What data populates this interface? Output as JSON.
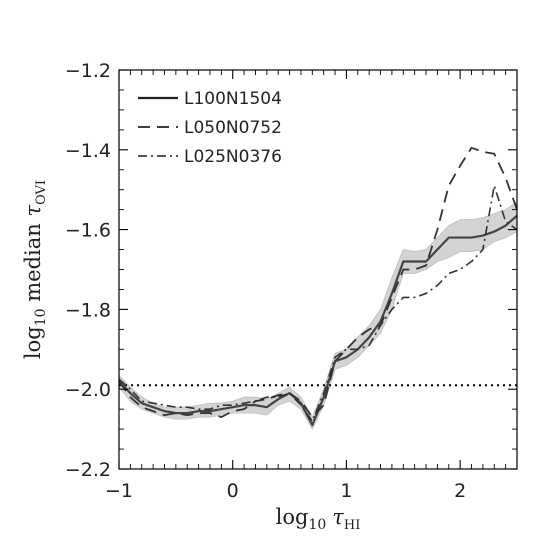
{
  "chart_data": {
    "type": "line",
    "xlabel": {
      "prefix": "log",
      "sub": "10",
      "var": "τ",
      "varsub": "HI"
    },
    "ylabel": {
      "prefix": "log",
      "sub": "10",
      "mid": " median ",
      "var": "τ",
      "varsub": "OVI"
    },
    "xlim": [
      -1,
      2.5
    ],
    "ylim": [
      -2.2,
      -1.2
    ],
    "xticks": [
      -1,
      0,
      1,
      2
    ],
    "xtick_labels": [
      "−1",
      "0",
      "1",
      "2"
    ],
    "yticks": [
      -2.2,
      -2.0,
      -1.8,
      -1.6,
      -1.4,
      -1.2
    ],
    "ytick_labels": [
      "−2.2",
      "−2.0",
      "−1.8",
      "−1.6",
      "−1.4",
      "−1.2"
    ],
    "legend_position": "top-left",
    "reference_line": {
      "y": -1.99,
      "style": "dotted"
    },
    "band": {
      "x": [
        -1.0,
        -0.9,
        -0.8,
        -0.7,
        -0.6,
        -0.5,
        -0.4,
        -0.3,
        -0.2,
        -0.1,
        0.0,
        0.1,
        0.2,
        0.3,
        0.4,
        0.5,
        0.6,
        0.7,
        0.8,
        0.9,
        1.0,
        1.1,
        1.2,
        1.3,
        1.4,
        1.5,
        1.6,
        1.7,
        1.8,
        1.9,
        2.0,
        2.1,
        2.2,
        2.3,
        2.4,
        2.5
      ],
      "lower": [
        -1.995,
        -2.03,
        -2.05,
        -2.06,
        -2.07,
        -2.075,
        -2.075,
        -2.07,
        -2.07,
        -2.065,
        -2.06,
        -2.06,
        -2.06,
        -2.065,
        -2.04,
        -2.03,
        -2.05,
        -2.1,
        -2.04,
        -1.95,
        -1.94,
        -1.92,
        -1.89,
        -1.86,
        -1.8,
        -1.71,
        -1.71,
        -1.7,
        -1.68,
        -1.67,
        -1.655,
        -1.655,
        -1.65,
        -1.63,
        -1.62,
        -1.605
      ],
      "upper": [
        -1.965,
        -1.995,
        -2.02,
        -2.035,
        -2.045,
        -2.045,
        -2.045,
        -2.04,
        -2.035,
        -2.035,
        -2.03,
        -2.02,
        -2.02,
        -2.025,
        -2.01,
        -1.995,
        -2.02,
        -2.07,
        -2.0,
        -1.91,
        -1.9,
        -1.87,
        -1.84,
        -1.8,
        -1.72,
        -1.65,
        -1.655,
        -1.65,
        -1.62,
        -1.59,
        -1.575,
        -1.575,
        -1.57,
        -1.56,
        -1.55,
        -1.53
      ]
    },
    "series": [
      {
        "name": "L100N1504",
        "dash": "",
        "width": 2.2,
        "color": "#444444",
        "x": [
          -1.0,
          -0.9,
          -0.8,
          -0.7,
          -0.6,
          -0.5,
          -0.4,
          -0.3,
          -0.2,
          -0.1,
          0.0,
          0.1,
          0.2,
          0.3,
          0.4,
          0.5,
          0.6,
          0.7,
          0.8,
          0.9,
          1.0,
          1.1,
          1.2,
          1.3,
          1.4,
          1.5,
          1.6,
          1.7,
          1.8,
          1.9,
          2.0,
          2.1,
          2.2,
          2.3,
          2.4,
          2.5
        ],
        "y": [
          -1.98,
          -2.01,
          -2.035,
          -2.045,
          -2.055,
          -2.06,
          -2.06,
          -2.055,
          -2.055,
          -2.05,
          -2.045,
          -2.04,
          -2.04,
          -2.045,
          -2.025,
          -2.01,
          -2.035,
          -2.09,
          -2.02,
          -1.93,
          -1.92,
          -1.9,
          -1.87,
          -1.83,
          -1.76,
          -1.68,
          -1.68,
          -1.68,
          -1.65,
          -1.62,
          -1.62,
          -1.62,
          -1.615,
          -1.605,
          -1.59,
          -1.565
        ]
      },
      {
        "name": "L050N0752",
        "dash": "12,7",
        "width": 1.8,
        "color": "#333333",
        "x": [
          -1.0,
          -0.9,
          -0.8,
          -0.7,
          -0.6,
          -0.5,
          -0.4,
          -0.3,
          -0.2,
          -0.1,
          0.0,
          0.1,
          0.2,
          0.3,
          0.4,
          0.5,
          0.6,
          0.7,
          0.8,
          0.9,
          1.0,
          1.1,
          1.2,
          1.3,
          1.4,
          1.5,
          1.6,
          1.7,
          1.8,
          1.9,
          2.0,
          2.1,
          2.2,
          2.3,
          2.4,
          2.5
        ],
        "y": [
          -1.98,
          -2.02,
          -2.045,
          -2.055,
          -2.065,
          -2.06,
          -2.065,
          -2.06,
          -2.06,
          -2.07,
          -2.055,
          -2.05,
          -2.03,
          -2.025,
          -2.015,
          -2.01,
          -2.03,
          -2.07,
          -2.04,
          -1.93,
          -1.9,
          -1.87,
          -1.85,
          -1.84,
          -1.77,
          -1.7,
          -1.7,
          -1.69,
          -1.6,
          -1.49,
          -1.44,
          -1.395,
          -1.405,
          -1.41,
          -1.47,
          -1.55
        ]
      },
      {
        "name": "L025N0376",
        "dash": "9,4,2,4",
        "width": 1.6,
        "color": "#333333",
        "x": [
          -1.0,
          -0.9,
          -0.8,
          -0.7,
          -0.6,
          -0.5,
          -0.4,
          -0.3,
          -0.2,
          -0.1,
          0.0,
          0.1,
          0.2,
          0.3,
          0.4,
          0.5,
          0.6,
          0.7,
          0.8,
          0.9,
          1.0,
          1.1,
          1.2,
          1.3,
          1.4,
          1.5,
          1.6,
          1.7,
          1.8,
          1.9,
          2.0,
          2.1,
          2.2,
          2.3,
          2.4,
          2.5
        ],
        "y": [
          -1.975,
          -2.0,
          -2.03,
          -2.035,
          -2.04,
          -2.045,
          -2.045,
          -2.05,
          -2.05,
          -2.04,
          -2.04,
          -2.035,
          -2.03,
          -2.02,
          -2.02,
          -2.01,
          -2.04,
          -2.08,
          -2.01,
          -1.92,
          -1.9,
          -1.9,
          -1.89,
          -1.84,
          -1.8,
          -1.77,
          -1.77,
          -1.76,
          -1.74,
          -1.71,
          -1.7,
          -1.68,
          -1.65,
          -1.49,
          -1.58,
          -1.6
        ]
      }
    ]
  }
}
